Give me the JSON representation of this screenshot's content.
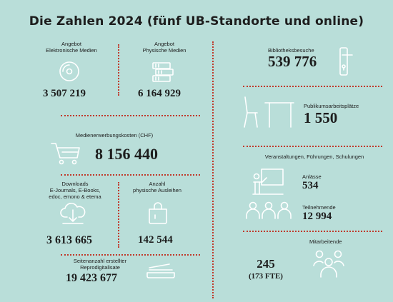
{
  "title": "Die Zahlen 2024 (fünf UB-Standorte und online)",
  "left": {
    "electronic": {
      "label_1": "Angebot",
      "label_2": "Elektronische Medien",
      "value": "3 507 219",
      "icon": "disc-icon"
    },
    "physical": {
      "label_1": "Angebot",
      "label_2": "Physische Medien",
      "value": "6 164 929",
      "icon": "books-icon"
    },
    "acquisition": {
      "label": "Medienerwerbungskosten (CHF)",
      "value": "8 156 440",
      "icon": "cart-icon"
    },
    "downloads": {
      "label_1": "Downloads",
      "label_2": "E-Journals, E-Books,",
      "label_3": "edoc, emono & etema",
      "value": "3 613 665",
      "icon": "cloud-download-icon"
    },
    "loans": {
      "label_1": "Anzahl",
      "label_2": "physische Ausleihen",
      "value": "142 544",
      "icon": "bag-icon"
    },
    "pages": {
      "label_1": "Seitenanzahl erstellter",
      "label_2": "Reprodigitalisate",
      "value": "19 423 677",
      "icon": "scanner-icon"
    }
  },
  "right": {
    "visits": {
      "label": "Bibliotheksbesuche",
      "value": "539 776",
      "icon": "door-handle-icon"
    },
    "workplaces": {
      "label": "Publikumsarbeitsplätze",
      "value": "1 550",
      "icon": "desk-icon"
    },
    "events": {
      "label": "Veranstaltungen, Führungen, Schulungen",
      "sessions_label": "Anlässe",
      "sessions_value": "534",
      "participants_label": "Teilnehmende",
      "participants_value": "12 994",
      "icons": [
        "presenter-icon",
        "audience-icon"
      ]
    },
    "staff": {
      "label": "Mitarbeitende",
      "value": "245",
      "fte": "(173 FTE)",
      "icon": "people-icon"
    }
  },
  "colors": {
    "background": "#b9ded9",
    "divider": "#c0392b",
    "icon": "#ffffff",
    "text": "#1d1d1d"
  }
}
